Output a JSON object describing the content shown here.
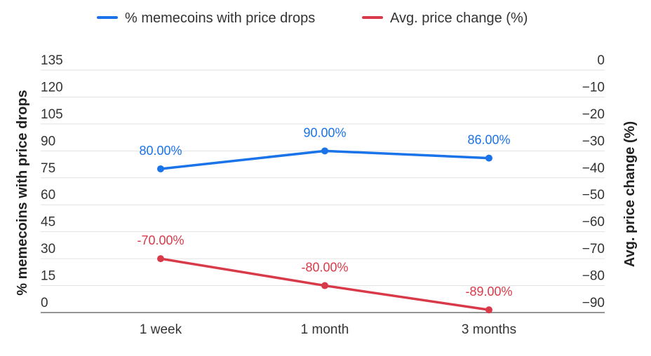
{
  "chart_data": {
    "type": "line",
    "categories": [
      "1 week",
      "1 month",
      "3 months"
    ],
    "series": [
      {
        "name": "% memecoins with price drops",
        "axis": "left",
        "color": "#1a73e8",
        "values": [
          80,
          90,
          86
        ],
        "labels": [
          "80.00%",
          "90.00%",
          "86.00%"
        ]
      },
      {
        "name": "Avg. price change (%)",
        "axis": "right",
        "color": "#d93a49",
        "values": [
          -70,
          -80,
          -89
        ],
        "labels": [
          "-70.00%",
          "-80.00%",
          "-89.00%"
        ]
      }
    ],
    "y_left": {
      "label": "% memecoins with price drops",
      "range": [
        0,
        135
      ],
      "ticks": [
        "0",
        "15",
        "30",
        "45",
        "60",
        "75",
        "90",
        "105",
        "120",
        "135"
      ]
    },
    "y_right": {
      "label": "Avg. price change (%)",
      "range": [
        -90,
        0
      ],
      "ticks": [
        "0",
        "-10",
        "-20",
        "-30",
        "-40",
        "-50",
        "-60",
        "-70",
        "-80",
        "-90"
      ]
    },
    "grid": true,
    "legend_position": "top-center"
  }
}
